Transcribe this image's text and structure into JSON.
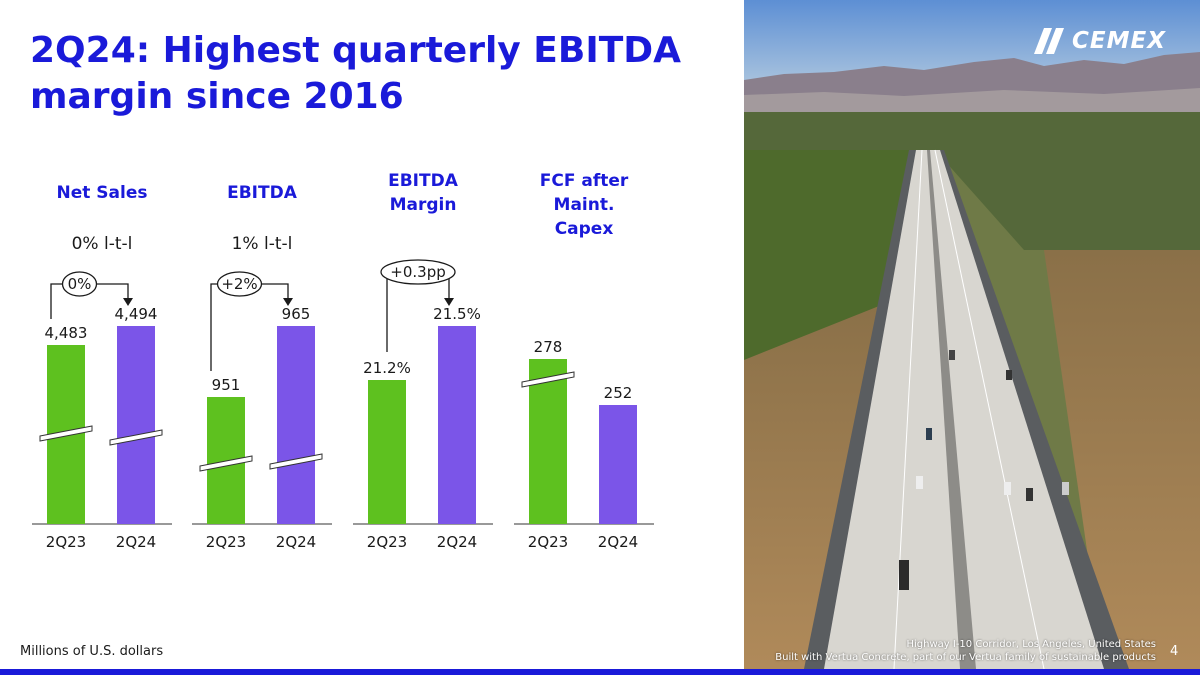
{
  "title": "2Q24: Highest quarterly EBITDA margin since 2016",
  "footer_note": "Millions of U.S. dollars",
  "page_number": "4",
  "photo": {
    "caption_line1": "Highway I-10 Corridor, Los Angeles, United States",
    "caption_line2": "Built with Vertua Concrete, part of our Vertua family of sustainable products"
  },
  "logo_text": "CEMEX",
  "colors": {
    "title": "#1a1ad9",
    "bar_2q23": "#5ec11f",
    "bar_2q24": "#7b55e8",
    "accent_bar": "#1a1ad9"
  },
  "chart_data": [
    {
      "type": "bar",
      "title": "Net Sales",
      "change_label": "0% l-t-l",
      "delta_label": "0%",
      "categories": [
        "2Q23",
        "2Q24"
      ],
      "values": [
        4483,
        4494
      ],
      "value_labels": [
        "4,483",
        "4,494"
      ],
      "axis_break": true
    },
    {
      "type": "bar",
      "title": "EBITDA",
      "change_label": "1% l-t-l",
      "delta_label": "+2%",
      "categories": [
        "2Q23",
        "2Q24"
      ],
      "values": [
        951,
        965
      ],
      "value_labels": [
        "951",
        "965"
      ],
      "axis_break": true
    },
    {
      "type": "bar",
      "title": "EBITDA Margin",
      "change_label": "",
      "delta_label": "+0.3pp",
      "categories": [
        "2Q23",
        "2Q24"
      ],
      "values": [
        21.2,
        21.5
      ],
      "value_labels": [
        "21.2%",
        "21.5%"
      ],
      "axis_break": false
    },
    {
      "type": "bar",
      "title": "FCF after Maint. Capex",
      "change_label": "",
      "delta_label": "",
      "categories": [
        "2Q23",
        "2Q24"
      ],
      "values": [
        278,
        252
      ],
      "value_labels": [
        "278",
        "252"
      ],
      "axis_break": true
    }
  ]
}
